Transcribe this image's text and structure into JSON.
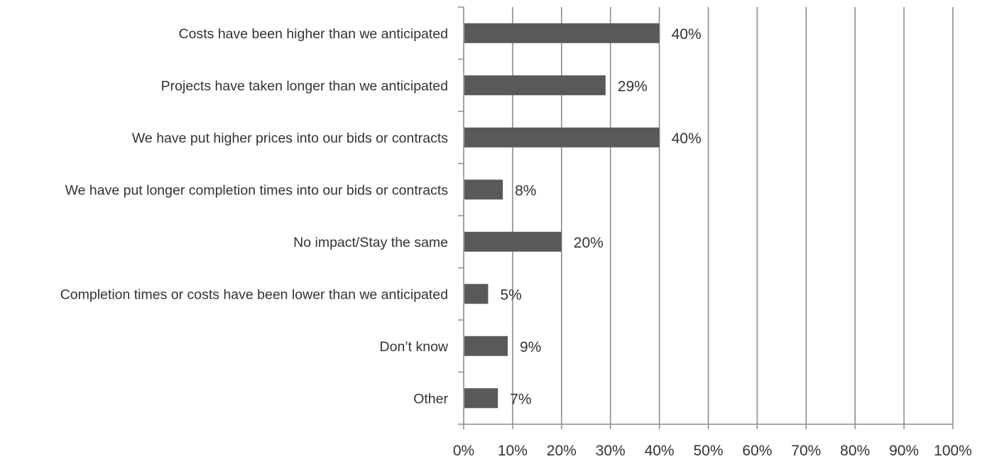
{
  "chart_data": {
    "type": "bar",
    "orientation": "horizontal",
    "categories": [
      "Costs have been higher than we anticipated",
      "Projects have taken longer than we anticipated",
      "We have put higher prices into our bids or contracts",
      "We have put longer completion times into our bids or contracts",
      "No impact/Stay the same",
      "Completion times or costs have been lower than we anticipated",
      "Don’t know",
      "Other"
    ],
    "values": [
      40,
      29,
      40,
      8,
      20,
      5,
      9,
      7
    ],
    "value_labels": [
      "40%",
      "29%",
      "40%",
      "8%",
      "20%",
      "5%",
      "9%",
      "7%"
    ],
    "xlim": [
      0,
      100
    ],
    "x_ticks": [
      "0%",
      "10%",
      "20%",
      "30%",
      "40%",
      "50%",
      "60%",
      "70%",
      "80%",
      "90%",
      "100%"
    ],
    "grid": "vertical",
    "colors": {
      "bar": "#595959",
      "grid": "#8c8c8c",
      "text": "#333333"
    }
  }
}
